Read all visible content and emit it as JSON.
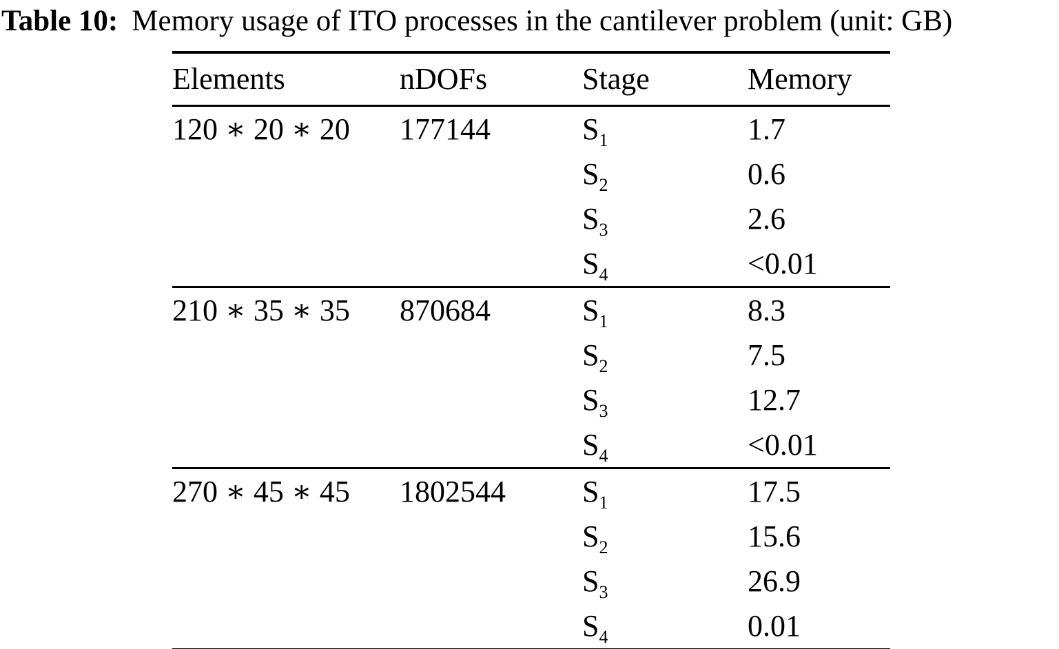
{
  "caption": {
    "label": "Table 10:",
    "text": "Memory usage of ITO processes in the cantilever problem (unit: GB)"
  },
  "table": {
    "headers": [
      "Elements",
      "nDOFs",
      "Stage",
      "Memory"
    ],
    "groups": [
      {
        "elements": "120 ∗ 20 ∗ 20",
        "ndofs": "177144",
        "stages": [
          {
            "stage": "S",
            "sub": "1",
            "memory": "1.7"
          },
          {
            "stage": "S",
            "sub": "2",
            "memory": "0.6"
          },
          {
            "stage": "S",
            "sub": "3",
            "memory": "2.6"
          },
          {
            "stage": "S",
            "sub": "4",
            "memory": "<0.01"
          }
        ]
      },
      {
        "elements": "210 ∗ 35 ∗ 35",
        "ndofs": "870684",
        "stages": [
          {
            "stage": "S",
            "sub": "1",
            "memory": "8.3"
          },
          {
            "stage": "S",
            "sub": "2",
            "memory": "7.5"
          },
          {
            "stage": "S",
            "sub": "3",
            "memory": "12.7"
          },
          {
            "stage": "S",
            "sub": "4",
            "memory": "<0.01"
          }
        ]
      },
      {
        "elements": "270 ∗ 45 ∗ 45",
        "ndofs": "1802544",
        "stages": [
          {
            "stage": "S",
            "sub": "1",
            "memory": "17.5"
          },
          {
            "stage": "S",
            "sub": "2",
            "memory": "15.6"
          },
          {
            "stage": "S",
            "sub": "3",
            "memory": "26.9"
          },
          {
            "stage": "S",
            "sub": "4",
            "memory": "0.01"
          }
        ]
      }
    ]
  }
}
